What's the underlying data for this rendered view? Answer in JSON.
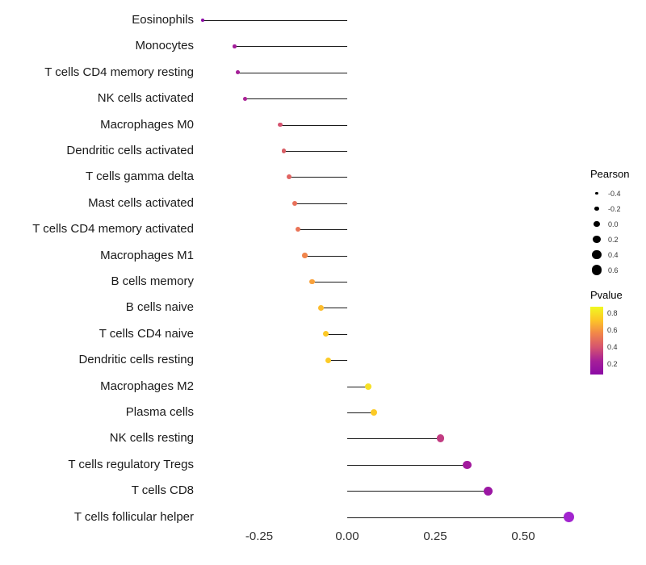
{
  "chart_data": {
    "type": "lollipop",
    "title": "",
    "xlabel": "",
    "ylabel": "",
    "xlim": [
      -0.45,
      0.68
    ],
    "grid": false,
    "x_ticks": [
      {
        "value": -0.25,
        "label": "-0.25"
      },
      {
        "value": 0.0,
        "label": "0.00"
      },
      {
        "value": 0.25,
        "label": "0.25"
      },
      {
        "value": 0.5,
        "label": "0.50"
      }
    ],
    "points": [
      {
        "label": "Eosinophils",
        "pearson": -0.41,
        "color": "#8b0aa5"
      },
      {
        "label": "Monocytes",
        "pearson": -0.32,
        "color": "#a21c9a"
      },
      {
        "label": "T cells CD4 memory resting",
        "pearson": -0.31,
        "color": "#a51f98"
      },
      {
        "label": "NK cells activated",
        "pearson": -0.29,
        "color": "#aa2395"
      },
      {
        "label": "Macrophages M0",
        "pearson": -0.19,
        "color": "#d5536f"
      },
      {
        "label": "Dendritic cells activated",
        "pearson": -0.18,
        "color": "#d95f66"
      },
      {
        "label": "T cells gamma delta",
        "pearson": -0.165,
        "color": "#e16462"
      },
      {
        "label": "Mast cells activated",
        "pearson": -0.15,
        "color": "#e8705a"
      },
      {
        "label": "T cells CD4 memory activated",
        "pearson": -0.14,
        "color": "#ea7457"
      },
      {
        "label": "Macrophages M1",
        "pearson": -0.12,
        "color": "#f1854c"
      },
      {
        "label": "B cells memory",
        "pearson": -0.1,
        "color": "#f9a13b"
      },
      {
        "label": "B cells naive",
        "pearson": -0.075,
        "color": "#fcbc2d"
      },
      {
        "label": "T cells CD4 naive",
        "pearson": -0.06,
        "color": "#fcc927"
      },
      {
        "label": "Dendritic cells resting",
        "pearson": -0.055,
        "color": "#fccb26"
      },
      {
        "label": "Macrophages M2",
        "pearson": 0.06,
        "color": "#f6e026"
      },
      {
        "label": "Plasma cells",
        "pearson": 0.075,
        "color": "#fcca26"
      },
      {
        "label": "NK cells resting",
        "pearson": 0.265,
        "color": "#c23c82"
      },
      {
        "label": "T cells regulatory Tregs",
        "pearson": 0.34,
        "color": "#a21a9d"
      },
      {
        "label": "T cells CD8",
        "pearson": 0.4,
        "color": "#9b17a3"
      },
      {
        "label": "T cells follicular helper",
        "pearson": 0.63,
        "color": "#a224cf"
      }
    ],
    "legend": {
      "size_title": "Pearson",
      "size_entries": [
        {
          "value": -0.4,
          "label": "-0.4"
        },
        {
          "value": -0.2,
          "label": "-0.2"
        },
        {
          "value": 0.0,
          "label": "0.0"
        },
        {
          "value": 0.2,
          "label": "0.2"
        },
        {
          "value": 0.4,
          "label": "0.4"
        },
        {
          "value": 0.6,
          "label": "0.6"
        }
      ],
      "color_title": "Pvalue",
      "color_ticks": [
        "0.8",
        "0.6",
        "0.4",
        "0.2"
      ],
      "gradient": [
        "#f0f921",
        "#fdc527",
        "#f1844b",
        "#d5536f",
        "#a62098",
        "#8b0aa5"
      ]
    }
  }
}
